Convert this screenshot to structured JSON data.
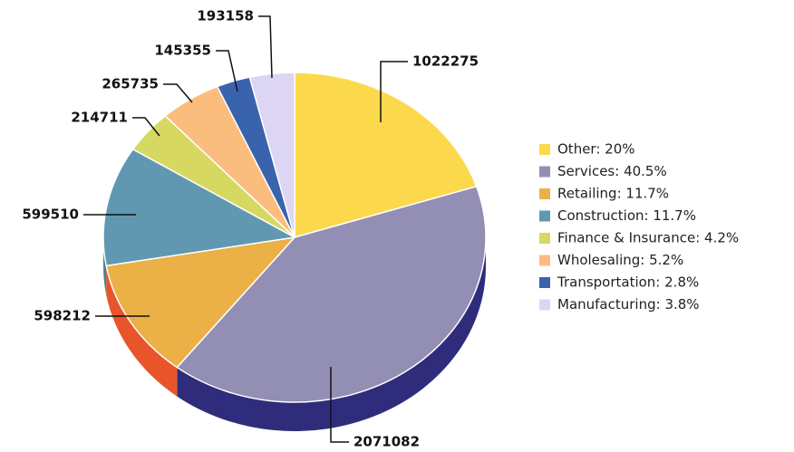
{
  "chart_data": {
    "type": "pie3d",
    "categories": [
      "Other: 20%",
      "Services: 40.5%",
      "Retailing: 11.7%",
      "Construction: 11.7%",
      "Finance & Insurance: 4.2%",
      "Wholesaling: 5.2%",
      "Transportation: 2.8%",
      "Manufacturing: 3.8%"
    ],
    "values": [
      1022275,
      2071082,
      598212,
      599510,
      214711,
      265735,
      145355,
      193158
    ],
    "colors": [
      "#fcd94c",
      "#938eb3",
      "#ebb046",
      "#6198b1",
      "#d6d862",
      "#fbbd7e",
      "#3a63ae",
      "#dcd6f4"
    ],
    "side_colors": [
      "#c9a92e",
      "#2f2d7b",
      "#e8552a",
      "#497f94",
      "#a8aa3e",
      "#d0945a",
      "#294a86",
      "#aaa4c6"
    ],
    "legend": "right"
  }
}
